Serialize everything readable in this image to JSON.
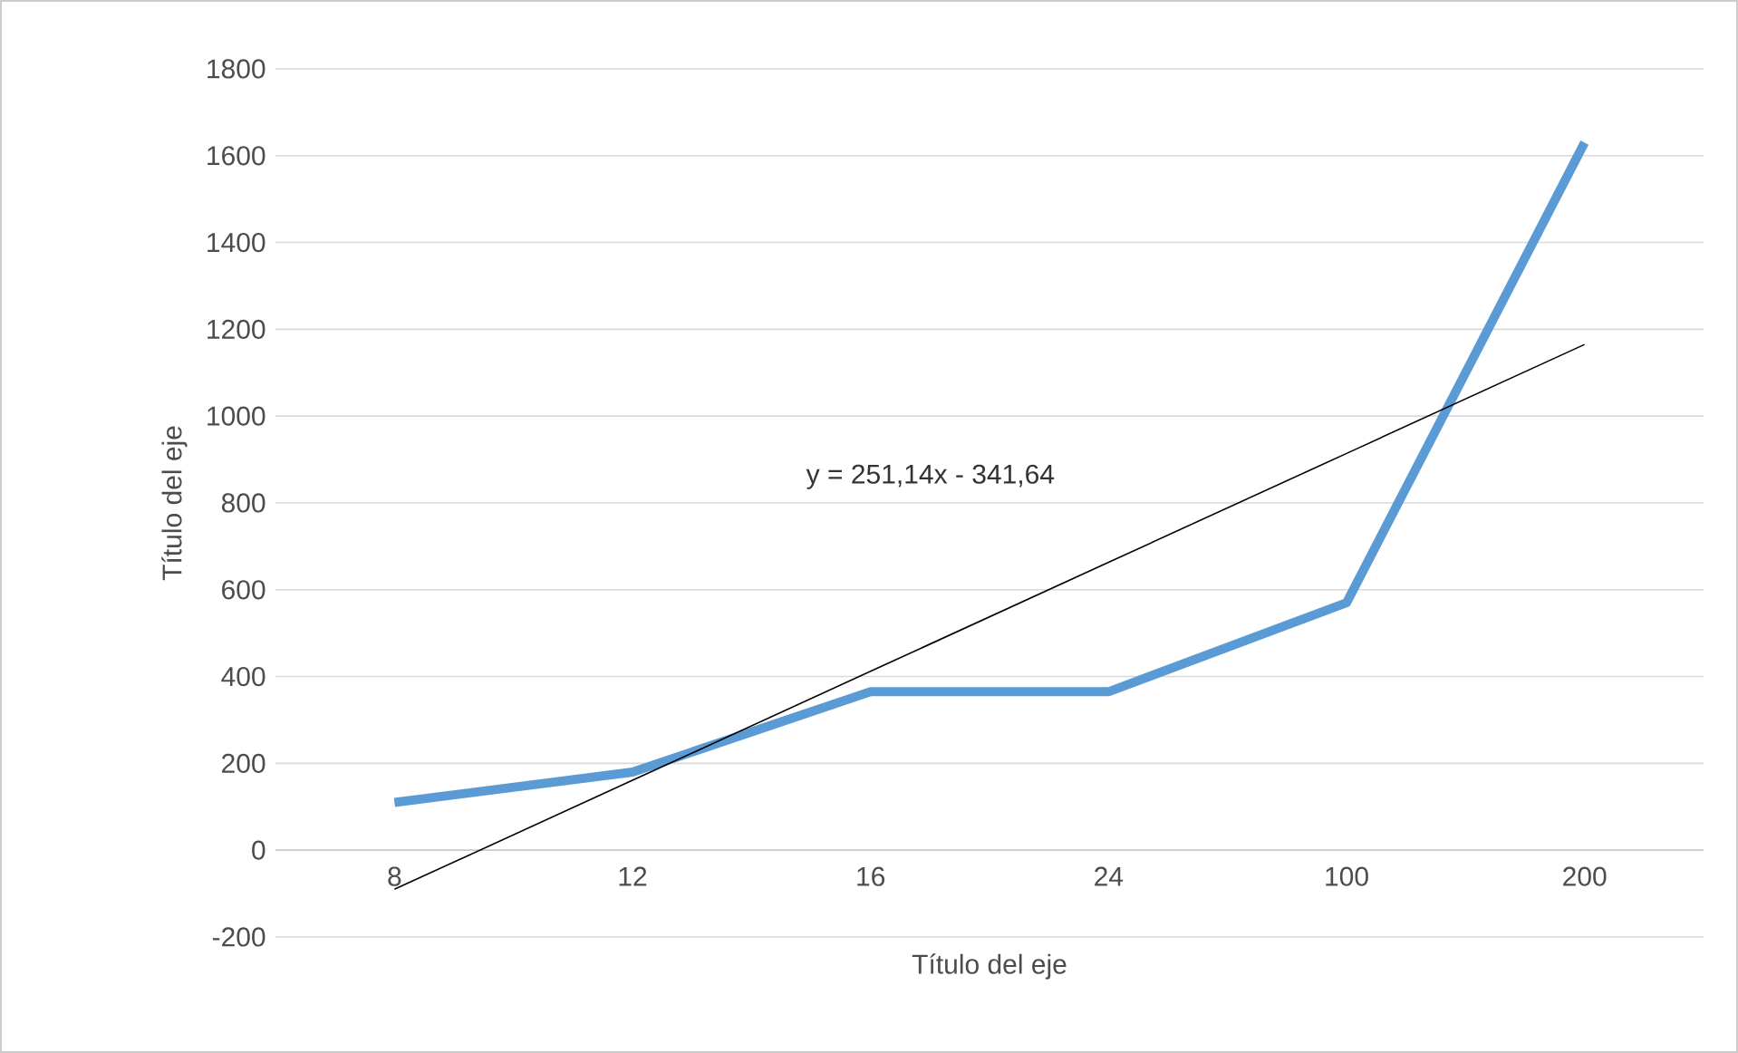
{
  "chart_data": {
    "type": "line",
    "xlabel": "Título del eje",
    "ylabel": "Título del eje",
    "categories": [
      "8",
      "12",
      "16",
      "24",
      "100",
      "200"
    ],
    "series": [
      {
        "color": "#5b9bd5",
        "values": [
          110,
          180,
          365,
          365,
          570,
          1630
        ]
      },
      {
        "color": "#000000",
        "values": [
          -90,
          161,
          412,
          663,
          914,
          1165
        ]
      }
    ],
    "annotations": [
      "y = 251,14x - 341,64"
    ],
    "ylim": [
      -200,
      1800
    ],
    "yticks": [
      -200,
      0,
      200,
      400,
      600,
      800,
      1000,
      1200,
      1400,
      1600,
      1800
    ],
    "grid": "y"
  }
}
